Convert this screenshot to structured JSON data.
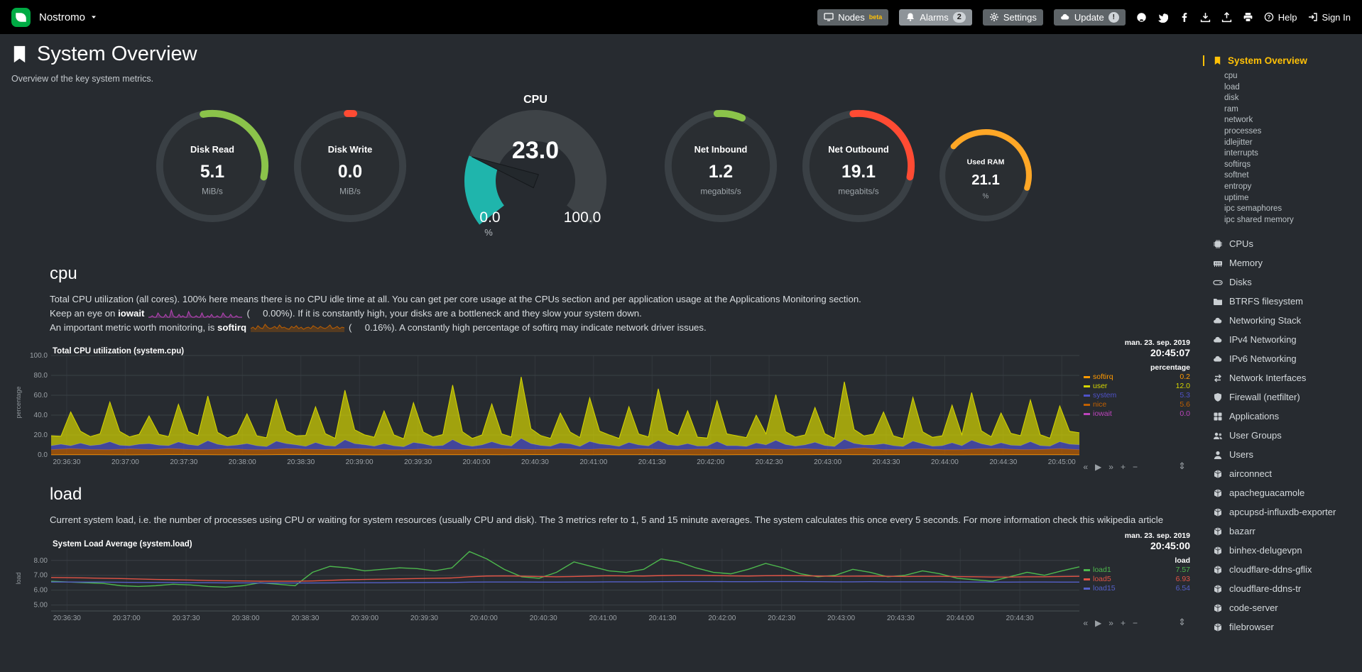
{
  "header": {
    "node_name": "Nostromo",
    "nodes_label": "Nodes",
    "nodes_badge": "beta",
    "alarms_label": "Alarms",
    "alarms_badge": "2",
    "settings_label": "Settings",
    "update_label": "Update",
    "update_badge": "!",
    "icon_buttons": [
      "github-icon",
      "twitter-icon",
      "facebook-icon",
      "download-icon",
      "upload-icon",
      "print-icon"
    ],
    "help_label": "Help",
    "signin_label": "Sign In"
  },
  "page": {
    "title": "System Overview",
    "subtitle": "Overview of the key system metrics."
  },
  "gauges_left": [
    {
      "label": "Disk Read",
      "value": "5.1",
      "unit": "MiB/s",
      "color": "#8BC34A",
      "arc_start": -10,
      "arc_sweep": 112
    },
    {
      "label": "Disk Write",
      "value": "0.0",
      "unit": "MiB/s",
      "color": "#FF4B33",
      "arc_start": -3,
      "arc_sweep": 7
    }
  ],
  "cpu_gauge": {
    "title": "CPU",
    "value": "23.0",
    "min": "0.0",
    "max": "100.0",
    "unit": "%",
    "percent": 23,
    "fill_color": "#1FB5AC",
    "track_color": "#3E4347"
  },
  "gauges_right": [
    {
      "label": "Net Inbound",
      "value": "1.2",
      "unit": "megabits/s",
      "color": "#8BC34A",
      "arc_start": -4,
      "arc_sweep": 28
    },
    {
      "label": "Net Outbound",
      "value": "19.1",
      "unit": "megabits/s",
      "color": "#FF4B33",
      "arc_start": -6,
      "arc_sweep": 108
    },
    {
      "label": "Used RAM",
      "value": "21.1",
      "unit": "%",
      "color": "#FFA726",
      "arc_start": -48,
      "arc_sweep": 155,
      "small": true
    }
  ],
  "cpu_section": {
    "heading": "cpu",
    "p1": "Total CPU utilization (all cores). 100% here means there is no CPU idle time at all. You can get per core usage at the CPUs section and per application usage at the Applications Monitoring section.",
    "p2_pre": "Keep an eye on ",
    "p2_bold": "iowait",
    "p2_mid": "(     0.00%).",
    "p2_post": " If it is constantly high, your disks are a bottleneck and they slow your system down.",
    "p3_pre": "An important metric worth monitoring, is ",
    "p3_bold": "softirq",
    "p3_mid": "(     0.16%).",
    "p3_post": " A constantly high percentage of softirq may indicate network driver issues."
  },
  "load_section": {
    "heading": "load",
    "p1": "Current system load, i.e. the number of processes using CPU or waiting for system resources (usually CPU and disk). The 3 metrics refer to 1, 5 and 15 minute averages. The system calculates this once every 5 seconds. For more information check this ",
    "link": "wikipedia article"
  },
  "sparklines": {
    "iowait": {
      "color": "#BB44BB",
      "data": [
        0,
        0,
        0.1,
        0,
        0,
        0.3,
        0.1,
        0,
        0,
        0.2,
        0,
        0,
        0.5,
        0.1,
        0,
        0,
        0.2,
        0,
        0.1,
        0,
        0,
        0.4,
        0.1,
        0,
        0,
        0.1,
        0,
        0,
        0.3,
        0,
        0,
        0.1,
        0,
        0.2,
        0,
        0,
        0.1,
        0,
        0,
        0.3,
        0.1,
        0,
        0,
        0.2,
        0,
        0,
        0.1,
        0,
        0,
        0
      ]
    },
    "softirq": {
      "color": "#C06000",
      "data": [
        0.2,
        0.3,
        0.15,
        0.4,
        0.25,
        0.2,
        0.5,
        0.3,
        0.2,
        0.25,
        0.35,
        0.2,
        0.45,
        0.25,
        0.3,
        0.2,
        0.15,
        0.35,
        0.25,
        0.4,
        0.2,
        0.3,
        0.15,
        0.25,
        0.3,
        0.2,
        0.4,
        0.3,
        0.2,
        0.35,
        0.25,
        0.2,
        0.3,
        0.45,
        0.2,
        0.25,
        0.35,
        0.2,
        0.3,
        0.25
      ]
    }
  },
  "chart_controls": {
    "backward": "«",
    "play": "▶",
    "forward": "»",
    "zoom_in": "+",
    "zoom_out": "−",
    "resize": "⇕"
  },
  "chart_data": [
    {
      "id": "cpu",
      "type": "area",
      "stacked": true,
      "title": "Total CPU utilization (system.cpu)",
      "date": "man. 23. sep. 2019",
      "time": "20:45:07",
      "ylabel": "percentage",
      "legend_header": "percentage",
      "ylim": [
        0,
        100
      ],
      "yticks": [
        0,
        20,
        40,
        60,
        80,
        100
      ],
      "ytick_labels": [
        "0.0",
        "20.0",
        "40.0",
        "60.0",
        "80.0",
        "100.0"
      ],
      "xticks": [
        "20:36:30",
        "20:37:00",
        "20:37:30",
        "20:38:00",
        "20:38:30",
        "20:39:00",
        "20:39:30",
        "20:40:00",
        "20:40:30",
        "20:41:00",
        "20:41:30",
        "20:42:00",
        "20:42:30",
        "20:43:00",
        "20:43:30",
        "20:44:00",
        "20:44:30",
        "20:45:00"
      ],
      "time_span_seconds": 527,
      "stack_order": [
        "softirq",
        "nice",
        "system",
        "user"
      ],
      "series": [
        {
          "name": "softirq",
          "value": "0.2",
          "color": "#FF9900",
          "data": [
            0.2,
            0.3,
            0.1,
            0.4,
            0.2,
            0.2,
            0.5,
            0.3,
            0.1,
            0.2,
            0.3,
            0.2,
            0.4,
            0.2,
            0.3,
            0.2,
            0.1,
            0.3,
            0.2,
            0.4,
            0.2,
            0.3,
            0.1,
            0.2,
            0.3,
            0.2
          ]
        },
        {
          "name": "user",
          "value": "12.0",
          "color": "#D6D600",
          "data": [
            10,
            8,
            34,
            12,
            9,
            11,
            40,
            14,
            9,
            10,
            28,
            11,
            9,
            38,
            13,
            10,
            45,
            12,
            8,
            11,
            30,
            10,
            9,
            42,
            13,
            9,
            11,
            36,
            12,
            8,
            50,
            14,
            10,
            9,
            33,
            11,
            8,
            40,
            12,
            9,
            11,
            55,
            13,
            8,
            10,
            38,
            11,
            9,
            62,
            15,
            10,
            8,
            30,
            12,
            9,
            44,
            13,
            10,
            8,
            36,
            11,
            9,
            52,
            14,
            10,
            33,
            9,
            8,
            41,
            12,
            10,
            9,
            28,
            11,
            46,
            13,
            9,
            10,
            35,
            12,
            8,
            58,
            14,
            9,
            11,
            32,
            10,
            8,
            44,
            12,
            9,
            10,
            38,
            11,
            48,
            13,
            9,
            30,
            12,
            10,
            42,
            11,
            8,
            36,
            13,
            12
          ]
        },
        {
          "name": "system",
          "value": "5.3",
          "color": "#4F52C8",
          "data": [
            4,
            5,
            3,
            6,
            4,
            5,
            8,
            4,
            3,
            5,
            6,
            4,
            3,
            7,
            5,
            4,
            9,
            5,
            3,
            4,
            6,
            4,
            3,
            8,
            5,
            4,
            3,
            7,
            4,
            3,
            9,
            5,
            4,
            3,
            6,
            4,
            3,
            7,
            5,
            3,
            4,
            10,
            5,
            3,
            4,
            7,
            4,
            3,
            11,
            6,
            4,
            3,
            6,
            5,
            3,
            8,
            5,
            4,
            3,
            7,
            4,
            3,
            9,
            5,
            4,
            6,
            3,
            3,
            8,
            4,
            4,
            3,
            6,
            4,
            9,
            5,
            3,
            4,
            7,
            4,
            3,
            10,
            5,
            3,
            4,
            6,
            4,
            3,
            8,
            5,
            3,
            4,
            7,
            4,
            9,
            5,
            3,
            6,
            4,
            4,
            8,
            4,
            3,
            7,
            5,
            5
          ]
        },
        {
          "name": "nice",
          "value": "5.6",
          "color": "#C06000",
          "data": [
            5,
            6,
            5,
            5,
            6,
            5,
            6,
            5,
            5,
            6,
            5,
            5,
            6,
            5,
            5,
            6,
            6,
            5,
            5,
            6,
            5,
            5,
            6,
            6,
            5,
            5,
            6,
            5,
            6,
            5,
            6,
            5,
            5,
            6,
            5,
            5,
            6,
            5,
            6,
            5,
            5,
            7,
            5,
            5,
            6,
            5,
            5,
            6,
            6,
            5,
            5,
            6,
            5
          ]
        },
        {
          "name": "iowait",
          "value": "0.0",
          "color": "#BB44BB",
          "data": [
            0,
            0
          ]
        }
      ]
    },
    {
      "id": "load",
      "type": "line",
      "stacked": false,
      "title": "System Load Average (system.load)",
      "date": "man. 23. sep. 2019",
      "time": "20:45:00",
      "ylabel": "load",
      "legend_header": "load",
      "ylim": [
        4.6,
        8.8
      ],
      "yticks": [
        5,
        6,
        7,
        8
      ],
      "ytick_labels": [
        "5.00",
        "6.00",
        "7.00",
        "8.00"
      ],
      "xticks": [
        "20:36:30",
        "20:37:00",
        "20:37:30",
        "20:38:00",
        "20:38:30",
        "20:39:00",
        "20:39:30",
        "20:40:00",
        "20:40:30",
        "20:41:00",
        "20:41:30",
        "20:42:00",
        "20:42:30",
        "20:43:00",
        "20:43:30",
        "20:44:00",
        "20:44:30"
      ],
      "time_span_seconds": 518,
      "series": [
        {
          "name": "load1",
          "value": "7.57",
          "color": "#4DB84D",
          "data": [
            6.6,
            6.55,
            6.5,
            6.45,
            6.3,
            6.25,
            6.3,
            6.4,
            6.35,
            6.25,
            6.2,
            6.3,
            6.5,
            6.4,
            6.3,
            7.2,
            7.6,
            7.5,
            7.3,
            7.4,
            7.5,
            7.45,
            7.3,
            7.5,
            8.6,
            8.1,
            7.4,
            6.9,
            6.8,
            7.2,
            7.9,
            7.6,
            7.3,
            7.2,
            7.4,
            8.1,
            7.9,
            7.5,
            7.2,
            7.1,
            7.4,
            7.8,
            7.5,
            7.1,
            6.9,
            7.0,
            7.4,
            7.2,
            6.9,
            7.0,
            7.3,
            7.1,
            6.8,
            6.7,
            6.6,
            6.9,
            7.2,
            7.0,
            7.3,
            7.57
          ]
        },
        {
          "name": "load5",
          "value": "6.93",
          "color": "#E25345",
          "data": [
            6.85,
            6.84,
            6.82,
            6.8,
            6.78,
            6.75,
            6.72,
            6.7,
            6.68,
            6.65,
            6.63,
            6.62,
            6.6,
            6.6,
            6.6,
            6.62,
            6.66,
            6.7,
            6.72,
            6.74,
            6.76,
            6.78,
            6.8,
            6.82,
            6.9,
            6.95,
            6.96,
            6.94,
            6.92,
            6.9,
            6.92,
            6.95,
            6.97,
            6.96,
            6.95,
            6.98,
            7.0,
            7.0,
            6.98,
            6.96,
            6.95,
            6.97,
            6.98,
            6.97,
            6.95,
            6.93,
            6.94,
            6.95,
            6.93,
            6.92,
            6.93,
            6.93,
            6.91,
            6.9,
            6.88,
            6.88,
            6.9,
            6.9,
            6.92,
            6.93
          ]
        },
        {
          "name": "load15",
          "value": "6.54",
          "color": "#5560C8",
          "data": [
            6.55,
            6.55,
            6.54,
            6.54,
            6.53,
            6.52,
            6.52,
            6.51,
            6.5,
            6.5,
            6.49,
            6.49,
            6.48,
            6.48,
            6.48,
            6.48,
            6.49,
            6.5,
            6.5,
            6.5,
            6.51,
            6.51,
            6.52,
            6.52,
            6.54,
            6.55,
            6.55,
            6.55,
            6.54,
            6.54,
            6.55,
            6.55,
            6.56,
            6.56,
            6.56,
            6.57,
            6.58,
            6.58,
            6.58,
            6.57,
            6.57,
            6.58,
            6.58,
            6.58,
            6.57,
            6.56,
            6.56,
            6.57,
            6.56,
            6.56,
            6.56,
            6.56,
            6.55,
            6.55,
            6.54,
            6.54,
            6.55,
            6.55,
            6.54,
            6.54
          ]
        }
      ]
    }
  ],
  "sidebar": {
    "active": {
      "label": "System Overview",
      "icon": "bookmark"
    },
    "submenu": [
      "cpu",
      "load",
      "disk",
      "ram",
      "network",
      "processes",
      "idlejitter",
      "interrupts",
      "softirqs",
      "softnet",
      "entropy",
      "uptime",
      "ipc semaphores",
      "ipc shared memory"
    ],
    "sections": [
      {
        "label": "CPUs",
        "icon": "microchip"
      },
      {
        "label": "Memory",
        "icon": "memory"
      },
      {
        "label": "Disks",
        "icon": "hdd"
      },
      {
        "label": "BTRFS filesystem",
        "icon": "folder"
      },
      {
        "label": "Networking Stack",
        "icon": "cloud"
      },
      {
        "label": "IPv4 Networking",
        "icon": "cloud"
      },
      {
        "label": "IPv6 Networking",
        "icon": "cloud"
      },
      {
        "label": "Network Interfaces",
        "icon": "exchange"
      },
      {
        "label": "Firewall (netfilter)",
        "icon": "shield"
      },
      {
        "label": "Applications",
        "icon": "apps"
      },
      {
        "label": "User Groups",
        "icon": "users"
      },
      {
        "label": "Users",
        "icon": "user"
      },
      {
        "label": "airconnect",
        "icon": "cube"
      },
      {
        "label": "apacheguacamole",
        "icon": "cube"
      },
      {
        "label": "apcupsd-influxdb-exporter",
        "icon": "cube"
      },
      {
        "label": "bazarr",
        "icon": "cube"
      },
      {
        "label": "binhex-delugevpn",
        "icon": "cube"
      },
      {
        "label": "cloudflare-ddns-gflix",
        "icon": "cube"
      },
      {
        "label": "cloudflare-ddns-tr",
        "icon": "cube"
      },
      {
        "label": "code-server",
        "icon": "cube"
      },
      {
        "label": "filebrowser",
        "icon": "cube"
      }
    ]
  }
}
